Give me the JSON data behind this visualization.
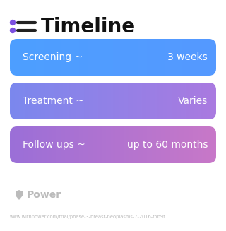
{
  "title": "Timeline",
  "title_fontsize": 20,
  "title_color": "#111111",
  "title_icon_color": "#7C4FE0",
  "title_line_color": "#6060DD",
  "background_color": "#ffffff",
  "rows": [
    {
      "label": "Screening ~",
      "value": "3 weeks",
      "color_left": "#4D9FFF",
      "color_right": "#5599FF"
    },
    {
      "label": "Treatment ~",
      "value": "Varies",
      "color_left": "#7B88EE",
      "color_right": "#AA7AE0"
    },
    {
      "label": "Follow ups ~",
      "value": "up to 60 months",
      "color_left": "#9B6FD8",
      "color_right": "#C878C8"
    }
  ],
  "watermark": "Power",
  "url": "www.withpower.com/trial/phase-3-breast-neoplasms-7-2016-f5b9f",
  "watermark_color": "#bbbbbb",
  "url_color": "#bbbbbb"
}
